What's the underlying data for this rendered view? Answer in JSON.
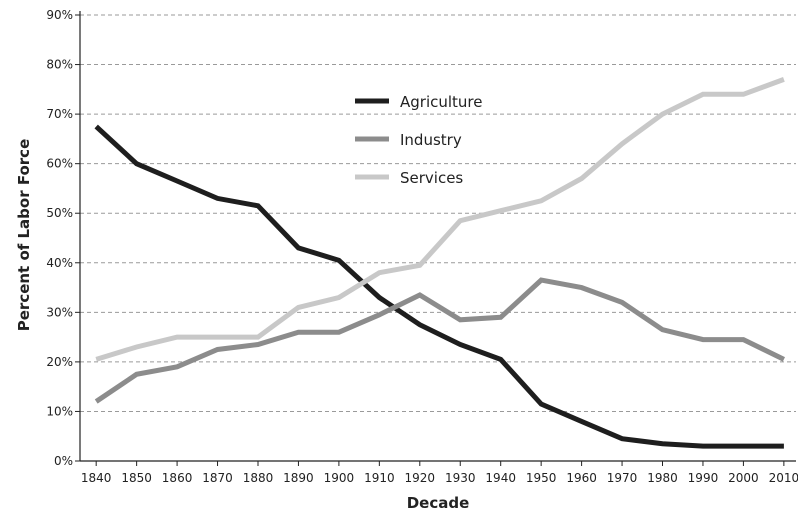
{
  "chart_data": {
    "type": "line",
    "title": "",
    "xlabel": "Decade",
    "ylabel": "Percent of Labor Force",
    "x": [
      1840,
      1850,
      1860,
      1870,
      1880,
      1890,
      1900,
      1910,
      1920,
      1930,
      1940,
      1950,
      1960,
      1970,
      1980,
      1990,
      2000,
      2010
    ],
    "x_tick_labels": [
      "1840",
      "1850",
      "1860",
      "1870",
      "1880",
      "1890",
      "1900",
      "1910",
      "1920",
      "1930",
      "1940",
      "1950",
      "1960",
      "1970",
      "1980",
      "1990",
      "2000",
      "2010"
    ],
    "y_ticks": [
      0,
      10,
      20,
      30,
      40,
      50,
      60,
      70,
      80,
      90
    ],
    "y_tick_labels": [
      "0%",
      "10%",
      "20%",
      "30%",
      "40%",
      "50%",
      "60%",
      "70%",
      "80%",
      "90%"
    ],
    "xlim": [
      1836,
      2013
    ],
    "ylim": [
      0,
      90
    ],
    "grid": "horizontal dashed",
    "legend_position": "upper-center",
    "series": [
      {
        "name": "Agriculture",
        "color": "#1e1e1e",
        "values": [
          67.5,
          60,
          56.5,
          53,
          51.5,
          43,
          40.5,
          33,
          27.5,
          23.5,
          20.5,
          11.5,
          8,
          4.5,
          3.5,
          3,
          3,
          3
        ]
      },
      {
        "name": "Industry",
        "color": "#8c8c8c",
        "values": [
          12,
          17.5,
          19,
          22.5,
          23.5,
          26,
          26,
          29.5,
          33.5,
          28.5,
          29,
          36.5,
          35,
          32,
          26.5,
          24.5,
          24.5,
          20.5
        ]
      },
      {
        "name": "Services",
        "color": "#c8c8c8",
        "values": [
          20.5,
          23,
          25,
          25,
          25,
          31,
          33,
          38,
          39.5,
          48.5,
          50.5,
          52.5,
          57,
          64,
          70,
          74,
          74,
          77
        ]
      }
    ]
  }
}
